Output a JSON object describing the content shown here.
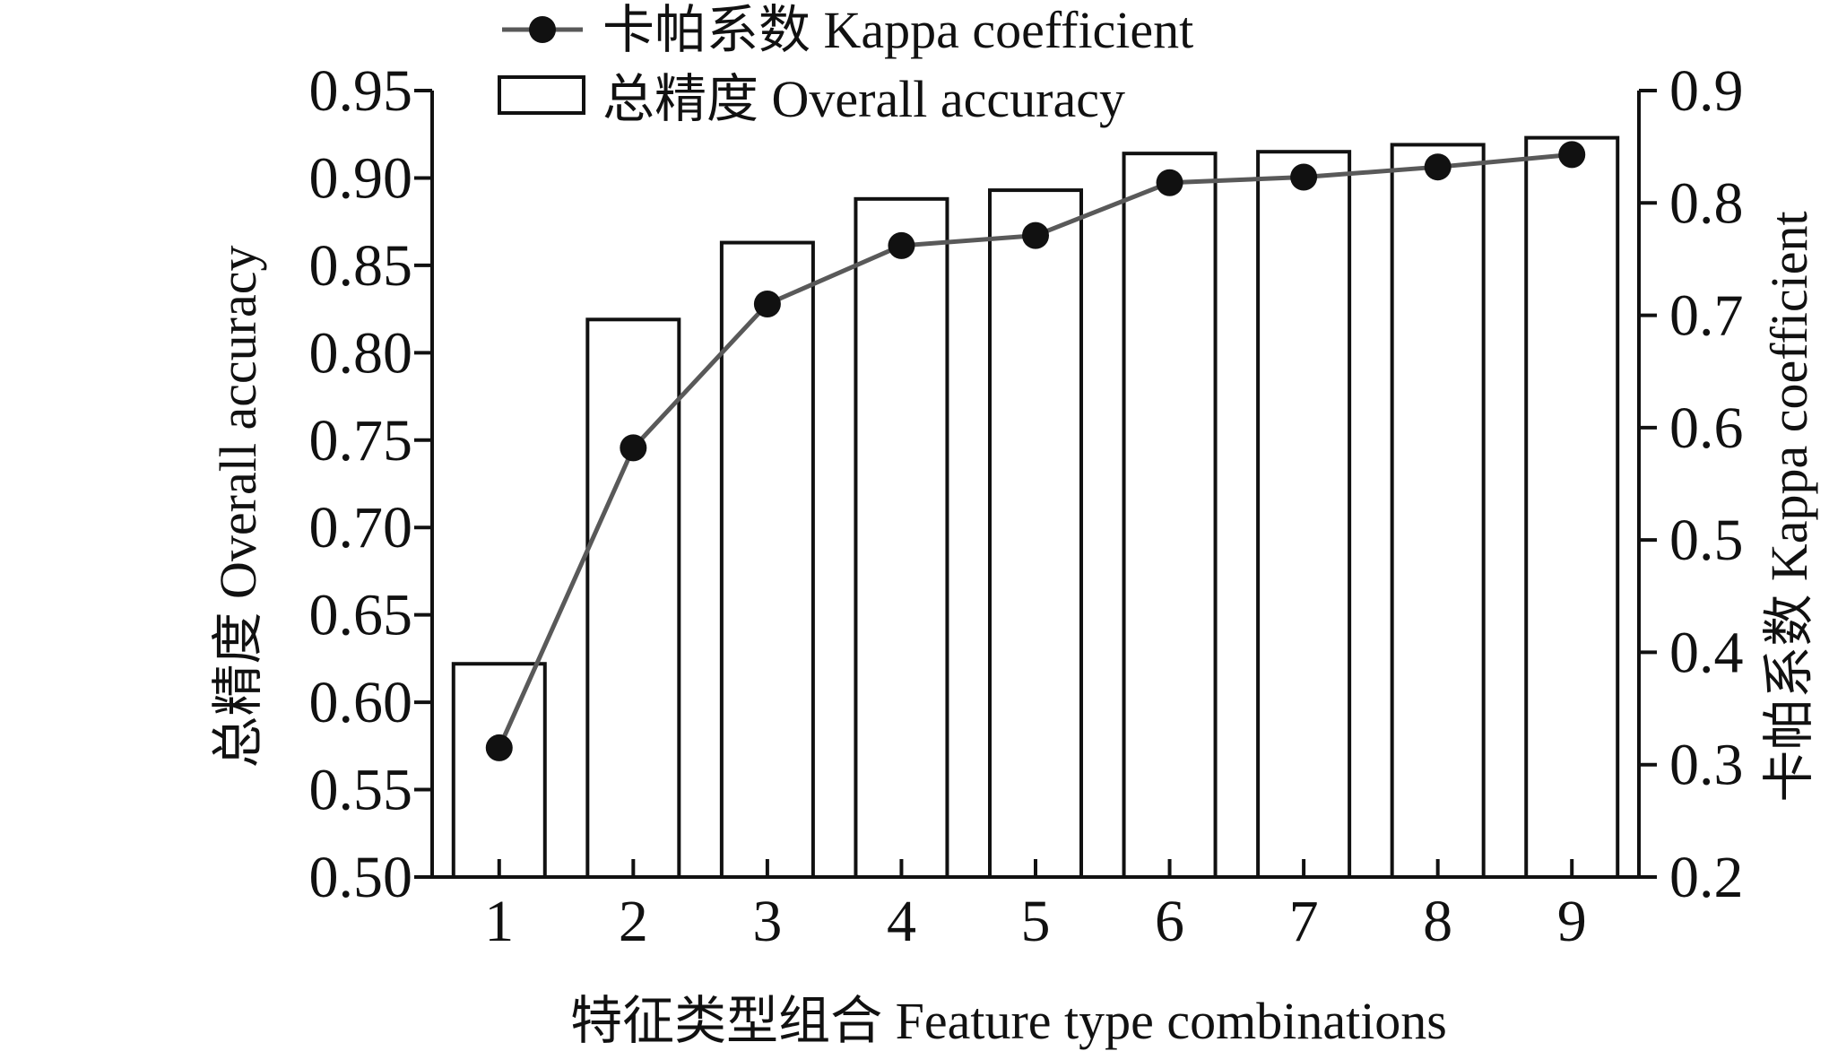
{
  "chart_data": {
    "type": "bar",
    "categories": [
      "1",
      "2",
      "3",
      "4",
      "5",
      "6",
      "7",
      "8",
      "9"
    ],
    "xlabel": "特征类型组合 Feature type combinations",
    "ylabel": "总精度 Overall accuracy",
    "y2label": "卡帕系数 Kappa coefficient",
    "ylim": [
      0.5,
      0.95
    ],
    "yticks": [
      "0.50",
      "0.55",
      "0.60",
      "0.65",
      "0.70",
      "0.75",
      "0.80",
      "0.85",
      "0.90",
      "0.95"
    ],
    "y2lim": [
      0.2,
      0.9
    ],
    "y2ticks": [
      "0.2",
      "0.3",
      "0.4",
      "0.5",
      "0.6",
      "0.7",
      "0.8",
      "0.9"
    ],
    "legend_position": "top-left",
    "grid": false,
    "series": [
      {
        "name": "卡帕系数 Kappa coefficient",
        "type": "line",
        "axis": "right",
        "values": [
          0.315,
          0.582,
          0.71,
          0.762,
          0.771,
          0.818,
          0.823,
          0.832,
          0.843
        ]
      },
      {
        "name": "总精度 Overall accuracy",
        "type": "bar",
        "axis": "left",
        "values": [
          0.622,
          0.819,
          0.863,
          0.888,
          0.893,
          0.914,
          0.915,
          0.919,
          0.923
        ]
      }
    ],
    "colors": {
      "line": "#595959",
      "marker": "#111111",
      "bar_fill": "#ffffff",
      "bar_edge": "#111111"
    }
  }
}
